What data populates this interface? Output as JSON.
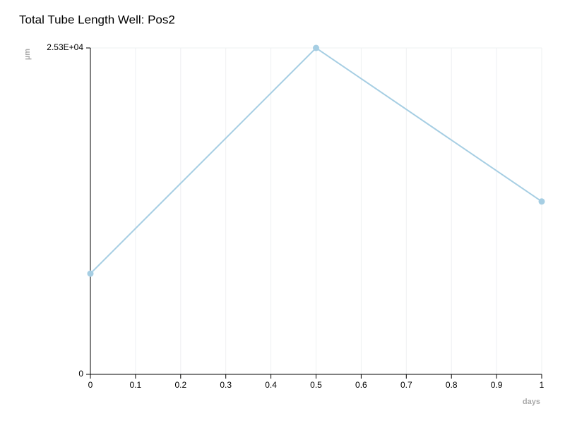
{
  "chart_data": {
    "type": "line",
    "title": "Total Tube Length Well: Pos2",
    "x_label": "days",
    "y_label": "µm",
    "x": [
      0,
      0.5,
      1
    ],
    "series": [
      {
        "name": "Pos2",
        "color": "#a6cee3",
        "values": [
          7810,
          25300,
          13400
        ]
      }
    ],
    "xlim": [
      0,
      1
    ],
    "xticks": [
      0,
      0.1,
      0.2,
      0.3,
      0.4,
      0.5,
      0.6,
      0.7,
      0.8,
      0.9,
      1
    ],
    "ylim": [
      0,
      25300
    ],
    "yticks": [
      0,
      {
        "value": 25300,
        "label": "2.53E+04"
      }
    ],
    "grid": true
  }
}
